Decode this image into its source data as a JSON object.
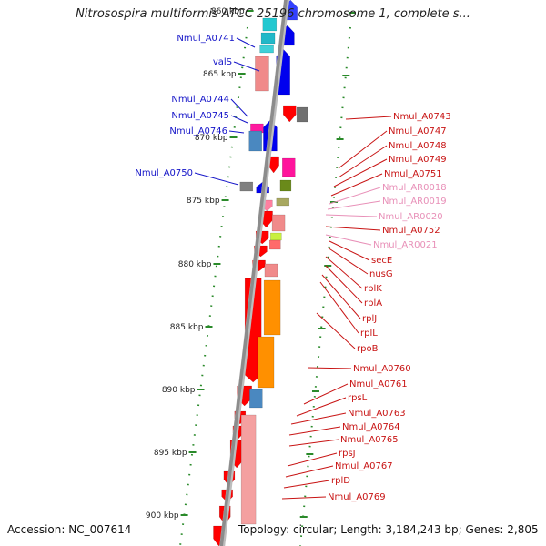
{
  "title": "Nitrosospira multiformis ATCC 25196 chromosome 1, complete s...",
  "footer": {
    "accession": "Accession: NC_007614",
    "topology": "Topology: circular; Length: 3,184,243 bp; Genes: 2,805"
  },
  "colors": {
    "backbone": "#8c8c8c",
    "ticks": "#2a8a2a",
    "left_labels": "#1414c8",
    "right_labels": "#c81414",
    "rna_labels": "#e890b8"
  },
  "kbp_ticks": [
    {
      "label": "860 kbp"
    },
    {
      "label": "865 kbp"
    },
    {
      "label": "870 kbp"
    },
    {
      "label": "875 kbp"
    },
    {
      "label": "880 kbp"
    },
    {
      "label": "885 kbp"
    },
    {
      "label": "890 kbp"
    },
    {
      "label": "895 kbp"
    },
    {
      "label": "900 kbp"
    }
  ],
  "left_labels": [
    "Nmul_A0741",
    "valS",
    "Nmul_A0744",
    "Nmul_A0745",
    "Nmul_A0746",
    "Nmul_A0750"
  ],
  "right_labels": [
    {
      "text": "Nmul_A0743",
      "type": "gene"
    },
    {
      "text": "Nmul_A0747",
      "type": "gene"
    },
    {
      "text": "Nmul_A0748",
      "type": "gene"
    },
    {
      "text": "Nmul_A0749",
      "type": "gene"
    },
    {
      "text": "Nmul_A0751",
      "type": "gene"
    },
    {
      "text": "Nmul_AR0018",
      "type": "rna"
    },
    {
      "text": "Nmul_AR0019",
      "type": "rna"
    },
    {
      "text": "Nmul_AR0020",
      "type": "rna"
    },
    {
      "text": "Nmul_A0752",
      "type": "gene"
    },
    {
      "text": "Nmul_AR0021",
      "type": "rna"
    },
    {
      "text": "secE",
      "type": "gene"
    },
    {
      "text": "nusG",
      "type": "gene"
    },
    {
      "text": "rplK",
      "type": "gene"
    },
    {
      "text": "rplA",
      "type": "gene"
    },
    {
      "text": "rplJ",
      "type": "gene"
    },
    {
      "text": "rplL",
      "type": "gene"
    },
    {
      "text": "rpoB",
      "type": "gene"
    },
    {
      "text": "Nmul_A0760",
      "type": "gene"
    },
    {
      "text": "Nmul_A0761",
      "type": "gene"
    },
    {
      "text": "rpsL",
      "type": "gene"
    },
    {
      "text": "Nmul_A0763",
      "type": "gene"
    },
    {
      "text": "Nmul_A0764",
      "type": "gene"
    },
    {
      "text": "Nmul_A0765",
      "type": "gene"
    },
    {
      "text": "rpsJ",
      "type": "gene"
    },
    {
      "text": "Nmul_A0767",
      "type": "gene"
    },
    {
      "text": "rplD",
      "type": "gene"
    },
    {
      "text": "Nmul_A0769",
      "type": "gene"
    }
  ]
}
